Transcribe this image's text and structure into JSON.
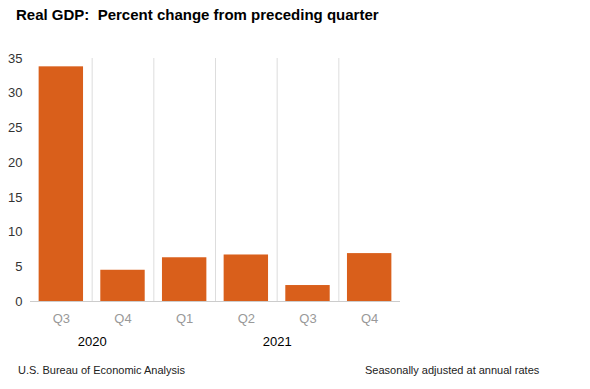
{
  "chart_data": {
    "type": "bar",
    "title": "Real GDP:  Percent change from preceding quarter",
    "categories": [
      "Q3",
      "Q4",
      "Q1",
      "Q2",
      "Q3",
      "Q4"
    ],
    "years": [
      "2020",
      "2020",
      "2021",
      "2021",
      "2021",
      "2021"
    ],
    "values": [
      33.8,
      4.5,
      6.3,
      6.7,
      2.3,
      6.9
    ],
    "color": "#d95f1b",
    "ylim": [
      0,
      35
    ],
    "yticks": [
      0,
      5,
      10,
      15,
      20,
      25,
      30,
      35
    ],
    "source": "U.S. Bureau of Economic Analysis",
    "note": "Seasonally adjusted at annual rates"
  }
}
